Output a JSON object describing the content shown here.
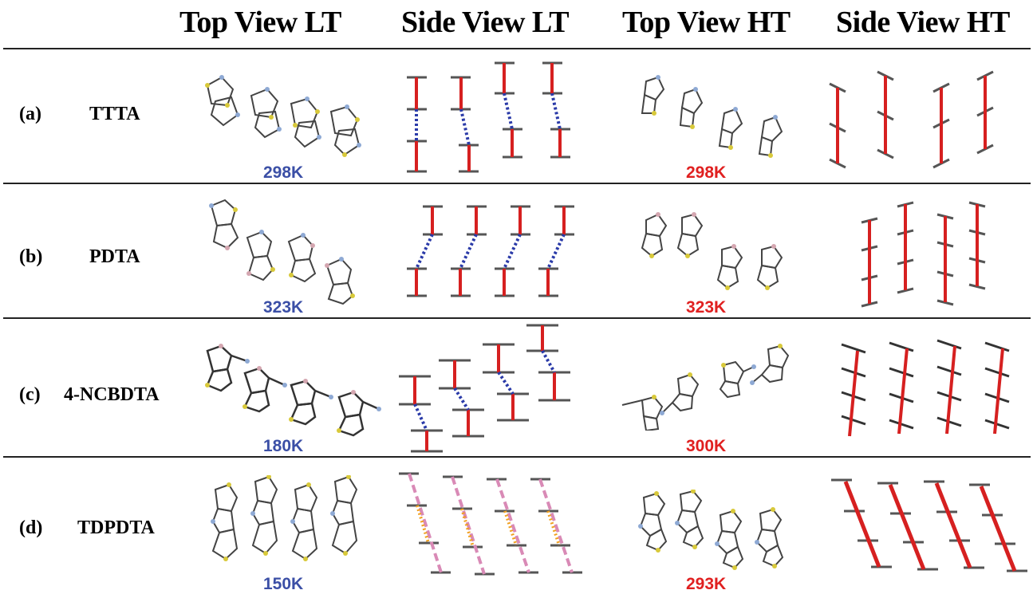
{
  "headers": {
    "top_view_lt": "Top View LT",
    "side_view_lt": "Side View LT",
    "top_view_ht": "Top View HT",
    "side_view_ht": "Side View HT"
  },
  "colors": {
    "lt_temp": "#3b4fa6",
    "ht_temp": "#e02020",
    "bond_solid": "#d62020",
    "bond_dotted_blue": "#2a3aa8",
    "bond_dashed_pink": "#d98ab6",
    "bond_dotted_orange": "#f0a020"
  },
  "rows": [
    {
      "label": "(a)",
      "name": "TTTA",
      "lt_temp": "298K",
      "ht_temp": "298K"
    },
    {
      "label": "(b)",
      "name": "PDTA",
      "lt_temp": "323K",
      "ht_temp": "323K"
    },
    {
      "label": "(c)",
      "name": "4-NCBDTA",
      "lt_temp": "180K",
      "ht_temp": "300K"
    },
    {
      "label": "(d)",
      "name": "TDPDTA",
      "lt_temp": "150K",
      "ht_temp": "293K"
    }
  ]
}
